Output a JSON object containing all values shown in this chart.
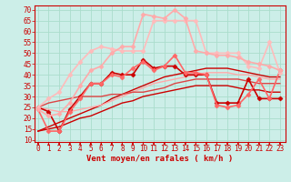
{
  "xlabel": "Vent moyen/en rafales ( km/h )",
  "bg_color": "#cceee8",
  "grid_color": "#aaddcc",
  "x_ticks": [
    0,
    1,
    2,
    3,
    4,
    5,
    6,
    7,
    8,
    9,
    10,
    11,
    12,
    13,
    14,
    15,
    16,
    17,
    18,
    19,
    20,
    21,
    22,
    23
  ],
  "y_ticks": [
    10,
    15,
    20,
    25,
    30,
    35,
    40,
    45,
    50,
    55,
    60,
    65,
    70
  ],
  "ylim": [
    9,
    72
  ],
  "xlim": [
    -0.3,
    23.5
  ],
  "series": [
    {
      "x": [
        0,
        1,
        2,
        3,
        4,
        5,
        6,
        7,
        8,
        9,
        10,
        11,
        12,
        13,
        14,
        15,
        16,
        17,
        18,
        19,
        20,
        21,
        22,
        23
      ],
      "y": [
        14,
        15,
        16,
        18,
        20,
        21,
        23,
        25,
        27,
        28,
        30,
        31,
        32,
        33,
        34,
        35,
        35,
        35,
        35,
        34,
        33,
        33,
        32,
        32
      ],
      "color": "#cc0000",
      "lw": 1.0,
      "marker": null,
      "ls": "-"
    },
    {
      "x": [
        0,
        1,
        2,
        3,
        4,
        5,
        6,
        7,
        8,
        9,
        10,
        11,
        12,
        13,
        14,
        15,
        16,
        17,
        18,
        19,
        20,
        21,
        22,
        23
      ],
      "y": [
        14,
        16,
        18,
        20,
        22,
        24,
        26,
        29,
        31,
        33,
        35,
        37,
        39,
        40,
        41,
        42,
        43,
        43,
        43,
        42,
        41,
        40,
        39,
        39
      ],
      "color": "#cc0000",
      "lw": 1.0,
      "marker": null,
      "ls": "-"
    },
    {
      "x": [
        0,
        1,
        2,
        3,
        4,
        5,
        6,
        7,
        8,
        9,
        10,
        11,
        12,
        13,
        14,
        15,
        16,
        17,
        18,
        19,
        20,
        21,
        22,
        23
      ],
      "y": [
        25,
        24,
        23,
        23,
        24,
        25,
        26,
        28,
        30,
        32,
        34,
        36,
        37,
        38,
        39,
        40,
        41,
        41,
        41,
        40,
        40,
        39,
        38,
        38
      ],
      "color": "#ffaaaa",
      "lw": 1.0,
      "marker": null,
      "ls": "-"
    },
    {
      "x": [
        0,
        1,
        2,
        3,
        4,
        5,
        6,
        7,
        8,
        9,
        10,
        11,
        12,
        13,
        14,
        15,
        16,
        17,
        18,
        19,
        20,
        21,
        22,
        23
      ],
      "y": [
        25,
        27,
        28,
        29,
        30,
        30,
        30,
        31,
        31,
        32,
        32,
        33,
        34,
        36,
        37,
        38,
        38,
        38,
        38,
        38,
        37,
        36,
        36,
        36
      ],
      "color": "#dd4444",
      "lw": 1.0,
      "marker": null,
      "ls": "-"
    },
    {
      "x": [
        0,
        1,
        2,
        3,
        4,
        5,
        6,
        7,
        8,
        9,
        10,
        11,
        12,
        13,
        14,
        15,
        16,
        17,
        18,
        19,
        20,
        21,
        22,
        23
      ],
      "y": [
        25,
        23,
        14,
        24,
        30,
        36,
        36,
        41,
        40,
        40,
        47,
        43,
        44,
        44,
        40,
        40,
        40,
        27,
        27,
        27,
        38,
        29,
        29,
        29
      ],
      "color": "#cc0000",
      "lw": 1.2,
      "marker": "D",
      "markersize": 2.5,
      "ls": "-"
    },
    {
      "x": [
        0,
        1,
        2,
        3,
        4,
        5,
        6,
        7,
        8,
        9,
        10,
        11,
        12,
        13,
        14,
        15,
        16,
        17,
        18,
        19,
        20,
        21,
        22,
        23
      ],
      "y": [
        24,
        14,
        14,
        23,
        29,
        36,
        36,
        40,
        39,
        43,
        46,
        42,
        44,
        49,
        41,
        41,
        40,
        26,
        25,
        26,
        31,
        38,
        29,
        42
      ],
      "color": "#ff6666",
      "lw": 1.2,
      "marker": "D",
      "markersize": 2.5,
      "ls": "-"
    },
    {
      "x": [
        0,
        1,
        2,
        3,
        4,
        5,
        6,
        7,
        8,
        9,
        10,
        11,
        12,
        13,
        14,
        15,
        16,
        17,
        18,
        19,
        20,
        21,
        22,
        23
      ],
      "y": [
        25,
        29,
        32,
        40,
        46,
        51,
        53,
        52,
        51,
        51,
        51,
        65,
        65,
        65,
        65,
        65,
        50,
        50,
        50,
        50,
        44,
        43,
        55,
        41
      ],
      "color": "#ffbbbb",
      "lw": 1.2,
      "marker": "D",
      "markersize": 2.5,
      "ls": "-"
    },
    {
      "x": [
        0,
        1,
        2,
        3,
        4,
        5,
        6,
        7,
        8,
        9,
        10,
        11,
        12,
        13,
        14,
        15,
        16,
        17,
        18,
        19,
        20,
        21,
        22,
        23
      ],
      "y": [
        24,
        21,
        22,
        27,
        35,
        42,
        44,
        50,
        53,
        53,
        68,
        67,
        66,
        70,
        66,
        51,
        50,
        49,
        49,
        48,
        46,
        45,
        44,
        42
      ],
      "color": "#ffaaaa",
      "lw": 1.2,
      "marker": "D",
      "markersize": 2.5,
      "ls": "-"
    }
  ],
  "tick_fontsize": 5.5,
  "label_fontsize": 6.5,
  "label_color": "#cc0000",
  "tick_color": "#cc0000",
  "arrow_color": "#cc0000"
}
